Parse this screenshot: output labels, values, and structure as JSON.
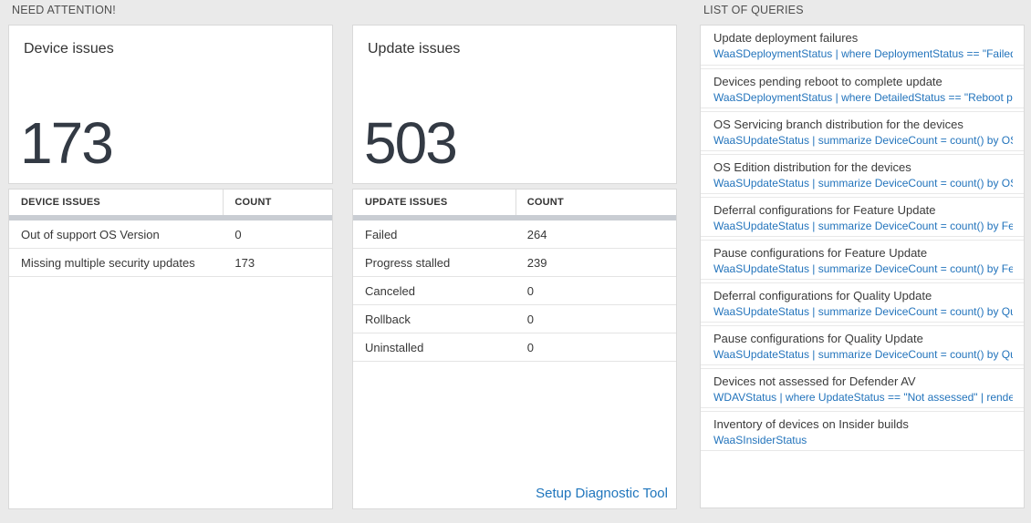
{
  "colors": {
    "page_background": "#eaeaea",
    "accent_blue": "#2374bc",
    "big_number": "#333a44",
    "table_divider_bar": "#c9cdd3"
  },
  "need_attention": {
    "header": "NEED ATTENTION!",
    "device_card": {
      "title": "Device issues",
      "value": "173"
    },
    "device_table": {
      "columns": [
        "DEVICE ISSUES",
        "COUNT"
      ],
      "rows": [
        {
          "label": "Out of support OS Version",
          "count": "0"
        },
        {
          "label": "Missing multiple security updates",
          "count": "173"
        }
      ]
    },
    "update_card": {
      "title": "Update issues",
      "value": "503"
    },
    "update_table": {
      "columns": [
        "UPDATE ISSUES",
        "COUNT"
      ],
      "rows": [
        {
          "label": "Failed",
          "count": "264"
        },
        {
          "label": "Progress stalled",
          "count": "239"
        },
        {
          "label": "Canceled",
          "count": "0"
        },
        {
          "label": "Rollback",
          "count": "0"
        },
        {
          "label": "Uninstalled",
          "count": "0"
        }
      ]
    },
    "setup_link": "Setup Diagnostic Tool"
  },
  "queries": {
    "header": "LIST OF QUERIES",
    "items": [
      {
        "title": "Update deployment failures",
        "query": "WaaSDeploymentStatus | where DeploymentStatus == \"Failed\" |..."
      },
      {
        "title": "Devices pending reboot to complete update",
        "query": "WaaSDeploymentStatus | where DetailedStatus == \"Reboot pend..."
      },
      {
        "title": "OS Servicing branch distribution for the devices",
        "query": "WaaSUpdateStatus | summarize DeviceCount = count() by OSSer..."
      },
      {
        "title": "OS Edition distribution for the devices",
        "query": "WaaSUpdateStatus | summarize DeviceCount = count() by OSEdit..."
      },
      {
        "title": "Deferral configurations for Feature Update",
        "query": "WaaSUpdateStatus | summarize DeviceCount = count() by Featur..."
      },
      {
        "title": "Pause configurations for Feature Update",
        "query": "WaaSUpdateStatus | summarize DeviceCount = count() by Featur..."
      },
      {
        "title": "Deferral configurations for Quality Update",
        "query": "WaaSUpdateStatus | summarize DeviceCount = count() by Qualit..."
      },
      {
        "title": "Pause configurations for Quality Update",
        "query": "WaaSUpdateStatus | summarize DeviceCount = count() by Qualit..."
      },
      {
        "title": "Devices not assessed for Defender AV",
        "query": "WDAVStatus | where UpdateStatus == \"Not assessed\" | render ta..."
      },
      {
        "title": "Inventory of devices on Insider builds",
        "query": "WaaSInsiderStatus"
      }
    ]
  }
}
